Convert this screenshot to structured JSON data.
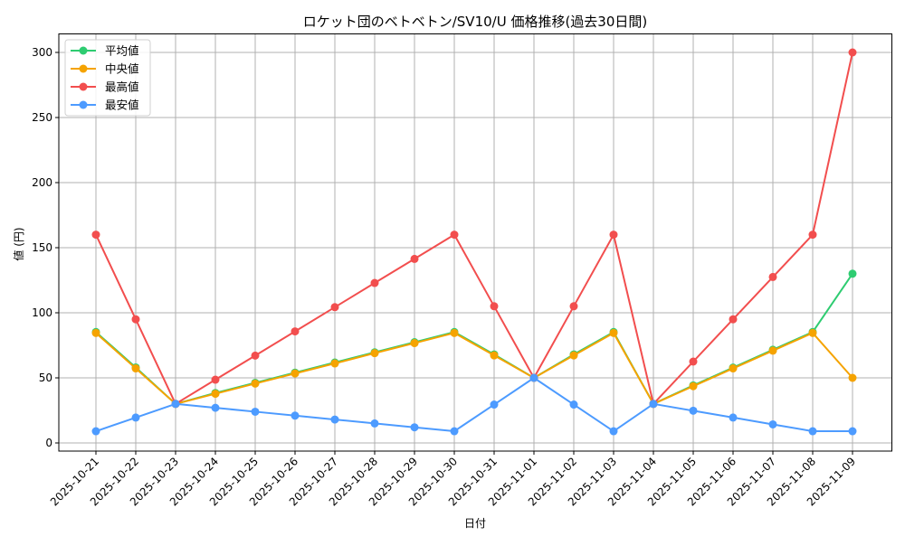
{
  "chart_data": {
    "type": "line",
    "title": "ロケット団のベトベトン/SV10/U 価格推移(過去30日間)",
    "xlabel": "日付",
    "ylabel": "値 (円)",
    "ylim": [
      -7,
      315
    ],
    "yticks": [
      0,
      50,
      100,
      150,
      200,
      250,
      300
    ],
    "grid": true,
    "legend_position": "upper left",
    "categories": [
      "2025-10-21",
      "2025-10-22",
      "2025-10-23",
      "2025-10-24",
      "2025-10-25",
      "2025-10-26",
      "2025-10-27",
      "2025-10-28",
      "2025-10-29",
      "2025-10-30",
      "2025-10-31",
      "2025-11-01",
      "2025-11-02",
      "2025-11-03",
      "2025-11-04",
      "2025-11-05",
      "2025-11-06",
      "2025-11-07",
      "2025-11-08",
      "2025-11-09"
    ],
    "series": [
      {
        "name": "平均値",
        "color": "#2ecc71",
        "values": [
          85.2,
          58,
          30,
          38.4,
          46.2,
          54,
          61.8,
          69.6,
          77.4,
          85.2,
          68,
          50,
          68,
          85.2,
          30,
          44.2,
          57.9,
          71.6,
          85.2,
          130
        ]
      },
      {
        "name": "中央値",
        "color": "#f5a300",
        "values": [
          84.5,
          57.25,
          30,
          37.8,
          45.6,
          53.4,
          61.1,
          69,
          76.7,
          84.5,
          67.25,
          50,
          67.25,
          84.5,
          30,
          43.6,
          57.25,
          70.9,
          84.5,
          50
        ]
      },
      {
        "name": "最高値",
        "color": "#f24e4e",
        "values": [
          160,
          95,
          30,
          48.6,
          67.1,
          85.7,
          104.3,
          122.9,
          141.4,
          160,
          105,
          50,
          105,
          160,
          30,
          62.5,
          95,
          127.5,
          160,
          300
        ]
      },
      {
        "name": "最安値",
        "color": "#4d9bff",
        "values": [
          9,
          19.5,
          30,
          27,
          24,
          21,
          18,
          15,
          12,
          9,
          29.5,
          50,
          29.5,
          9,
          30,
          24.75,
          19.5,
          14.25,
          9,
          9
        ]
      }
    ]
  }
}
